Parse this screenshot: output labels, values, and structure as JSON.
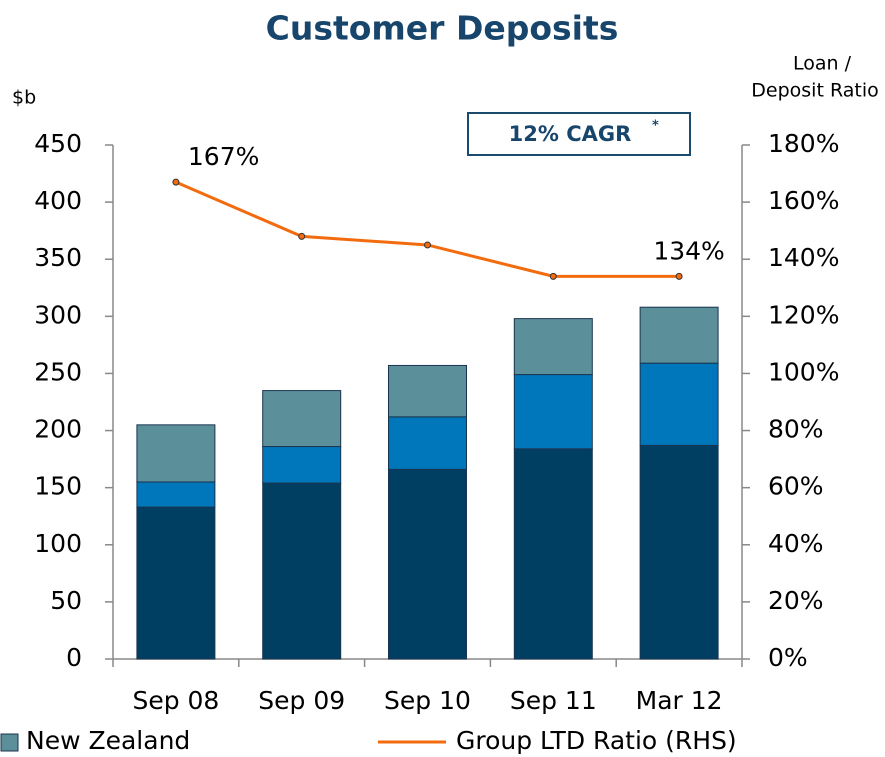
{
  "chart_data": {
    "type": "bar",
    "title": "Customer Deposits",
    "ylabel": "$b",
    "y2label": [
      "Loan /",
      "Deposit Ratio"
    ],
    "annotation": {
      "text": "12% CAGR",
      "sup": "*"
    },
    "categories": [
      "Sep 08",
      "Sep 09",
      "Sep 10",
      "Sep 11",
      "Mar 12"
    ],
    "stacked": true,
    "series": [
      {
        "color": "#003f62",
        "values": [
          133,
          154,
          166,
          184,
          187
        ]
      },
      {
        "color": "#0077bb",
        "values": [
          22,
          32,
          46,
          65,
          72
        ]
      },
      {
        "name": "New Zealand",
        "color": "#5b8f99",
        "values": [
          50,
          49,
          45,
          49,
          49
        ]
      },
      {
        "name": "Group LTD Ratio (RHS)",
        "type": "line",
        "axis": "y2",
        "color": "#f26c0f",
        "values": [
          167,
          148,
          145,
          134,
          134
        ],
        "value_labels": [
          "167%",
          null,
          null,
          null,
          "134%"
        ]
      }
    ],
    "ylim": [
      0,
      450
    ],
    "yticks": [
      0,
      50,
      100,
      150,
      200,
      250,
      300,
      350,
      400,
      450
    ],
    "y2lim": [
      0,
      180
    ],
    "y2ticks": [
      {
        "value": 0,
        "label": "0%"
      },
      {
        "value": 20,
        "label": "20%"
      },
      {
        "value": 40,
        "label": "40%"
      },
      {
        "value": 60,
        "label": "60%"
      },
      {
        "value": 80,
        "label": "80%"
      },
      {
        "value": 100,
        "label": "100%"
      },
      {
        "value": 120,
        "label": "120%"
      },
      {
        "value": 140,
        "label": "140%"
      },
      {
        "value": 160,
        "label": "160%"
      },
      {
        "value": 180,
        "label": "180%"
      }
    ],
    "grid": false
  }
}
